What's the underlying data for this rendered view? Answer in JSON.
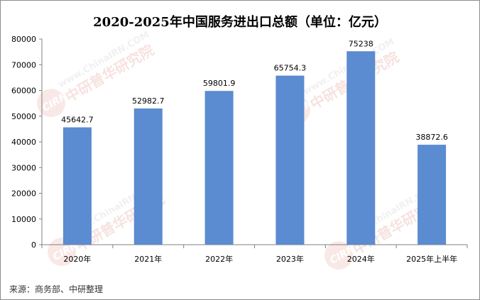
{
  "chart_data": {
    "type": "bar",
    "title": "2020-2025年中国服务进出口总额（单位：亿元）",
    "categories": [
      "2020年",
      "2021年",
      "2022年",
      "2023年",
      "2024年",
      "2025年上半年"
    ],
    "values": [
      45642.7,
      52982.7,
      59801.9,
      65754.3,
      75238,
      38872.6
    ],
    "data_labels": [
      "45642.7",
      "52982.7",
      "59801.9",
      "65754.3",
      "75238",
      "38872.6"
    ],
    "y_ticks": [
      "0",
      "10000",
      "20000",
      "30000",
      "40000",
      "50000",
      "60000",
      "70000",
      "80000"
    ],
    "ylim": [
      0,
      80000
    ],
    "bar_color": "#5b8bd0",
    "grid": false,
    "legend": "none"
  },
  "source_note": "来源：商务部、中研整理",
  "watermark": {
    "site": "www.ChinaIRN.COM",
    "brand": "中研普华研究院",
    "logo": "CIRN"
  }
}
